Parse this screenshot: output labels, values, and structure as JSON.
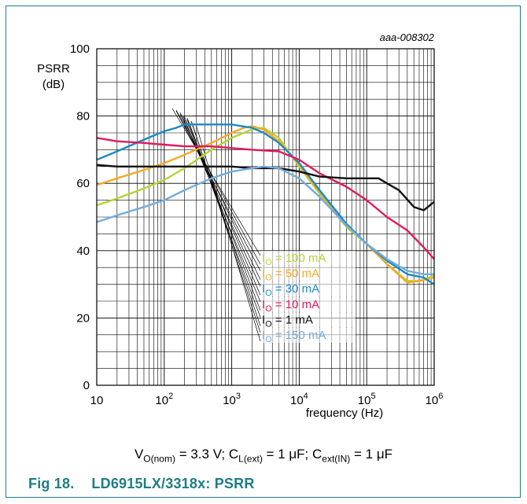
{
  "chart_data": {
    "type": "line",
    "x_scale": "log",
    "xlim": [
      10,
      1000000
    ],
    "ylim": [
      0,
      100
    ],
    "xlabel": "frequency (Hz)",
    "ylabel_line1": "PSRR",
    "ylabel_line2": "(dB)",
    "code": "aaa-008302",
    "grid": true,
    "x_ticks": [
      {
        "value": 10,
        "base": "10",
        "exp": ""
      },
      {
        "value": 100,
        "base": "10",
        "exp": "2"
      },
      {
        "value": 1000,
        "base": "10",
        "exp": "3"
      },
      {
        "value": 10000,
        "base": "10",
        "exp": "4"
      },
      {
        "value": 100000,
        "base": "10",
        "exp": "5"
      },
      {
        "value": 1000000,
        "base": "10",
        "exp": "6"
      }
    ],
    "y_ticks": [
      0,
      20,
      40,
      60,
      80,
      100
    ],
    "series": [
      {
        "name": "IO = 100 mA",
        "sub": "O",
        "pre": "I",
        "post": " =  100 mA",
        "color": "#b5d334",
        "x": [
          10,
          20,
          50,
          100,
          200,
          500,
          1000,
          2000,
          3000,
          5000,
          10000,
          20000,
          50000,
          100000,
          200000,
          400000,
          600000,
          1000000
        ],
        "y": [
          53.5,
          55.5,
          58.5,
          61,
          64.5,
          70,
          73.5,
          76,
          76.5,
          73.5,
          65,
          57,
          47,
          42,
          36,
          31,
          31,
          32.5
        ]
      },
      {
        "name": "IO = 50 mA",
        "sub": "O",
        "pre": "I",
        "post": " = 50 mA",
        "color": "#f7a823",
        "x": [
          10,
          20,
          50,
          100,
          200,
          500,
          1000,
          1500,
          2000,
          3000,
          5000,
          10000,
          20000,
          50000,
          100000,
          200000,
          400000,
          600000,
          1000000
        ],
        "y": [
          59.5,
          61.5,
          64,
          66,
          68.5,
          72,
          75,
          76.5,
          77,
          76,
          72.5,
          65.5,
          57.5,
          47.5,
          42,
          36,
          30.5,
          31,
          32
        ]
      },
      {
        "name": "IO = 30 mA",
        "sub": "O",
        "pre": "I",
        "post": " = 30 mA",
        "color": "#1b8ac5",
        "x": [
          10,
          20,
          50,
          100,
          150,
          200,
          300,
          500,
          1000,
          2000,
          3000,
          5000,
          10000,
          20000,
          50000,
          100000,
          200000,
          400000,
          700000,
          1000000
        ],
        "y": [
          67,
          69.5,
          73,
          75.5,
          76.5,
          77.5,
          77.5,
          77.5,
          77.5,
          76.5,
          75,
          72,
          66,
          58,
          48,
          42,
          37,
          33,
          32,
          30
        ]
      },
      {
        "name": "IO = 10 mA",
        "sub": "O",
        "pre": "I",
        "post": " = 10 mA",
        "color": "#e0195d",
        "x": [
          10,
          20,
          50,
          100,
          200,
          500,
          1000,
          2000,
          5000,
          10000,
          20000,
          50000,
          100000,
          200000,
          400000,
          700000,
          1000000
        ],
        "y": [
          73.5,
          72.5,
          72,
          71.5,
          71,
          71,
          70.5,
          70,
          69.5,
          67,
          63,
          59,
          55,
          50,
          46,
          41,
          37.5
        ]
      },
      {
        "name": "IO = 1 mA",
        "sub": "O",
        "pre": "I",
        "post": " =  1 mA",
        "color": "#111111",
        "x": [
          10,
          20,
          50,
          100,
          200,
          500,
          1000,
          2000,
          5000,
          10000,
          20000,
          50000,
          100000,
          150000,
          200000,
          300000,
          500000,
          700000,
          1000000
        ],
        "y": [
          65.5,
          65,
          65,
          65,
          65,
          65,
          65,
          64.5,
          64.5,
          63.5,
          62,
          61.5,
          61.5,
          61.5,
          60,
          58,
          53,
          52,
          54.5
        ]
      },
      {
        "name": "IO = 150 mA",
        "sub": "O",
        "pre": "I",
        "post": " = 150 mA",
        "color": "#73acdd",
        "x": [
          10,
          20,
          50,
          100,
          200,
          500,
          1000,
          2000,
          3000,
          5000,
          10000,
          20000,
          50000,
          100000,
          200000,
          400000,
          700000,
          1000000
        ],
        "y": [
          48.5,
          50.5,
          53,
          55,
          58,
          61.5,
          63.5,
          64.5,
          65,
          64.5,
          61.5,
          56,
          47.5,
          42,
          37.5,
          34,
          33,
          33
        ]
      }
    ]
  },
  "conditions": {
    "v_main": "V",
    "v_sub": "O(nom)",
    "v_val": " = 3.3 V; ",
    "cl_main": "C",
    "cl_sub": "L(ext)",
    "cl_val": " = 1 μF; ",
    "cin_main": "C",
    "cin_sub": "ext(IN)",
    "cin_val": " = 1 μF"
  },
  "figure": {
    "number": "Fig 18.",
    "title": "LD6915LX/3318x: PSRR"
  }
}
